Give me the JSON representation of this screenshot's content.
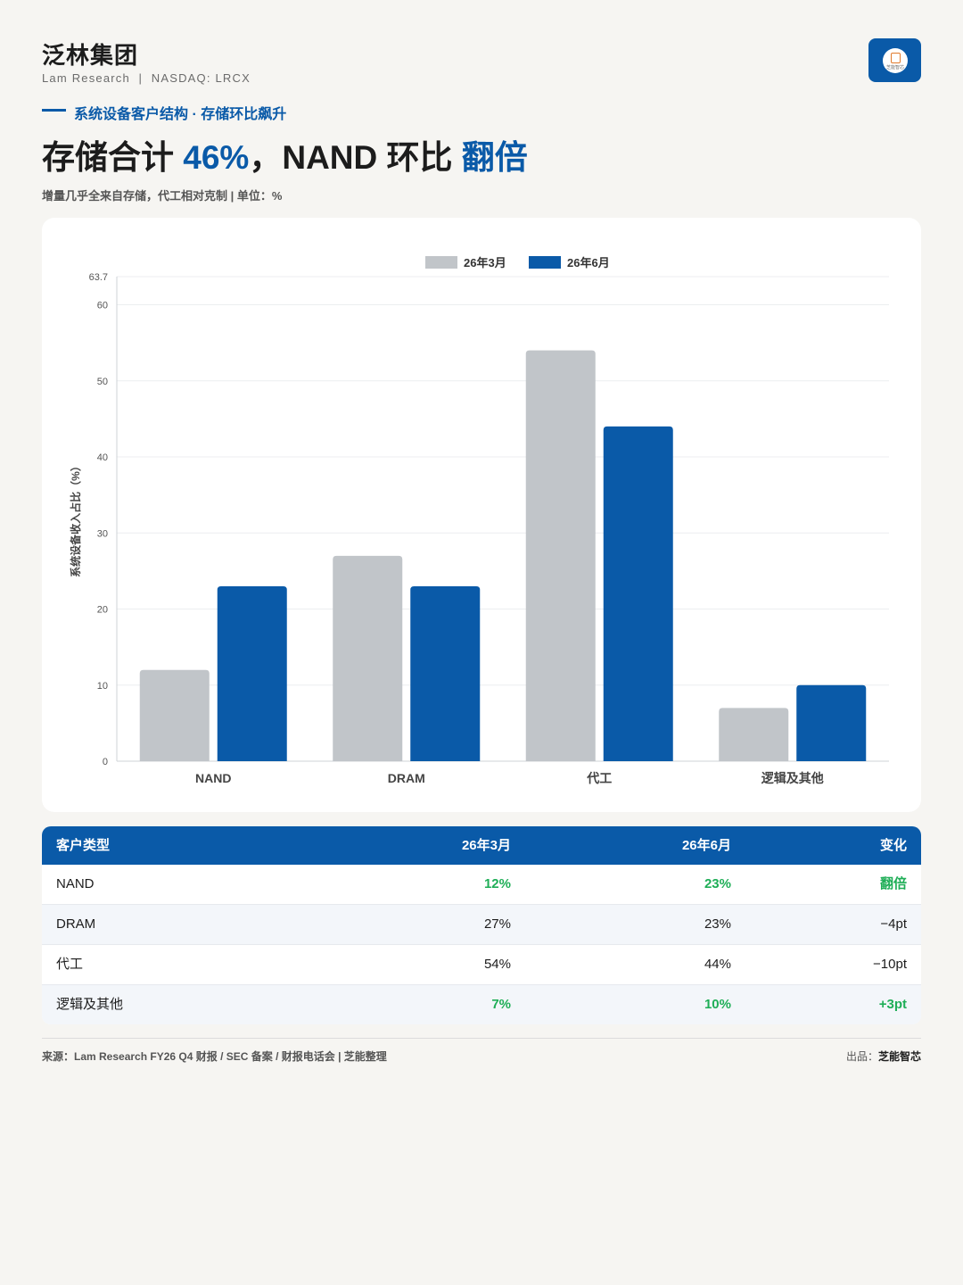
{
  "header": {
    "brand_title": "泛林集团",
    "brand_sub": "Lam Research  |  NASDAQ: LRCX",
    "logo_text": "芝能智芯",
    "kicker": "系统设备客户结构 · 存储环比飙升",
    "headline_parts": [
      "存储合计 ",
      "46%",
      "，NAND 环比 ",
      "翻倍"
    ],
    "subtitle": "增量几乎全来自存储，代工相对克制 | 单位：%"
  },
  "colors": {
    "accent": "#0a5aa8",
    "series_a": "#c1c5c9",
    "series_b": "#0a5aa8",
    "positive": "#1fae57"
  },
  "chart_data": {
    "type": "bar",
    "categories": [
      "NAND",
      "DRAM",
      "代工",
      "逻辑及其他"
    ],
    "series": [
      {
        "name": "26年3月",
        "values": [
          12,
          27,
          54,
          7
        ]
      },
      {
        "name": "26年6月",
        "values": [
          23,
          23,
          44,
          10
        ]
      }
    ],
    "ylabel": "系统设备收入占比（%）",
    "ylim": [
      0,
      63.7
    ],
    "yticks": [
      0,
      10,
      20,
      30,
      40,
      50,
      60,
      63.7
    ],
    "grid": true,
    "legend": "top"
  },
  "table": {
    "headers": [
      "客户类型",
      "26年3月",
      "26年6月",
      "变化"
    ],
    "rows": [
      {
        "cells": [
          "NAND",
          "12%",
          "23%",
          "翻倍"
        ],
        "positive": true
      },
      {
        "cells": [
          "DRAM",
          "27%",
          "23%",
          "−4pt"
        ],
        "positive": false
      },
      {
        "cells": [
          "代工",
          "54%",
          "44%",
          "−10pt"
        ],
        "positive": false
      },
      {
        "cells": [
          "逻辑及其他",
          "7%",
          "10%",
          "+3pt"
        ],
        "positive": true
      }
    ]
  },
  "footer": {
    "source": "来源：Lam Research FY26 Q4 财报 / SEC 备案 / 财报电话会 | 芝能整理",
    "credit_label": "出品：",
    "credit_name": "芝能智芯"
  }
}
